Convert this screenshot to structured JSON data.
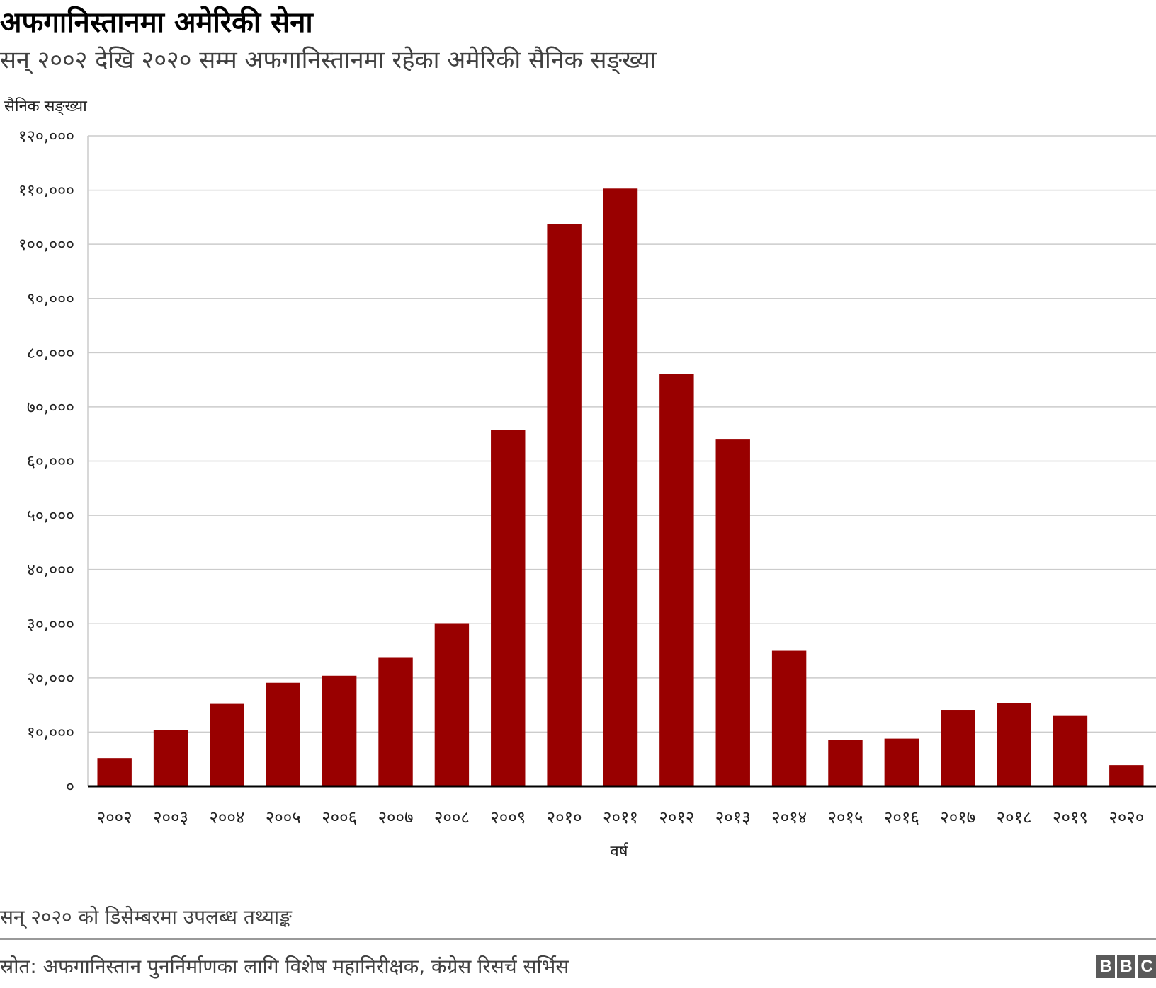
{
  "header": {
    "title": "अफगानिस्तानमा अमेरिकी सेना",
    "subtitle": "सन् २००२ देखि २०२० सम्म अफगानिस्तानमा रहेका अमेरिकी सैनिक सङ्ख्या"
  },
  "footer": {
    "note": "सन् २०२० को डिसेम्बरमा उपलब्ध तथ्याङ्क",
    "source": "स्रोत: अफगानिस्तान पुनर्निर्माणका लागि विशेष महानिरीक्षक, कंग्रेस रिसर्च सर्भिस",
    "logo_letters": [
      "B",
      "B",
      "C"
    ]
  },
  "chart_data": {
    "type": "bar",
    "title": "अफगानिस्तानमा अमेरिकी सेना",
    "subtitle": "सन् २००२ देखि २०२० सम्म अफगानिस्तानमा रहेका अमेरिकी सैनिक सङ्ख्या",
    "xlabel": "वर्ष",
    "ylabel": "सैनिक सङ्ख्या",
    "categories": [
      "२००२",
      "२००३",
      "२००४",
      "२००५",
      "२००६",
      "२००७",
      "२००८",
      "२००९",
      "२०१०",
      "२०११",
      "२०१२",
      "२०१३",
      "२०१४",
      "२०१५",
      "२०१६",
      "२०१७",
      "२०१८",
      "२०१९",
      "२०२०"
    ],
    "values": [
      5200,
      10400,
      15200,
      19100,
      20400,
      23700,
      30100,
      65800,
      103700,
      110300,
      76100,
      64100,
      25000,
      8600,
      8800,
      14100,
      15400,
      13100,
      3900
    ],
    "yticks": [
      {
        "value": 0,
        "label": "०"
      },
      {
        "value": 10000,
        "label": "१०,०००"
      },
      {
        "value": 20000,
        "label": "२०,०००"
      },
      {
        "value": 30000,
        "label": "३०,०००"
      },
      {
        "value": 40000,
        "label": "४०,०००"
      },
      {
        "value": 50000,
        "label": "५०,०००"
      },
      {
        "value": 60000,
        "label": "६०,०००"
      },
      {
        "value": 70000,
        "label": "७०,०००"
      },
      {
        "value": 80000,
        "label": "८०,०००"
      },
      {
        "value": 90000,
        "label": "९०,०००"
      },
      {
        "value": 100000,
        "label": "१००,०००"
      },
      {
        "value": 110000,
        "label": "११०,०००"
      },
      {
        "value": 120000,
        "label": "१२०,०००"
      }
    ],
    "ylim": [
      0,
      120000
    ],
    "grid": true,
    "bar_color": "#990000",
    "grid_color": "#cccccc",
    "axis_color": "#000000"
  }
}
